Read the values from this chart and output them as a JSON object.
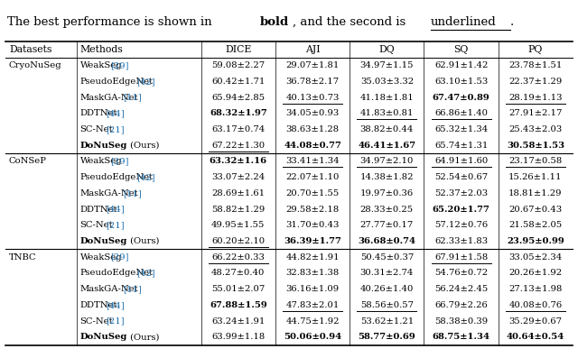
{
  "headers": [
    "Datasets",
    "Methods",
    "DICE",
    "AJI",
    "DQ",
    "SQ",
    "PQ"
  ],
  "rows": [
    {
      "dataset": "CryoNuSeg",
      "method": "WeakSeg",
      "ref": "29",
      "dice": "59.08±2.27",
      "aji": "29.07±1.81",
      "dq": "34.97±1.15",
      "sq": "62.91±1.42",
      "pq": "23.78±1.51",
      "bold": [],
      "underline": [],
      "dataset_start": true
    },
    {
      "dataset": "",
      "method": "PseudoEdgeNet",
      "ref": "42",
      "dice": "60.42±1.71",
      "aji": "36.78±2.17",
      "dq": "35.03±3.32",
      "sq": "63.10±1.53",
      "pq": "22.37±1.29",
      "bold": [],
      "underline": [],
      "dataset_start": false
    },
    {
      "dataset": "",
      "method": "MaskGA-Net",
      "ref": "11",
      "dice": "65.94±2.85",
      "aji": "40.13±0.73",
      "dq": "41.18±1.81",
      "sq": "67.47±0.89",
      "pq": "28.19±1.13",
      "bold": [
        "sq"
      ],
      "underline": [
        "aji",
        "pq"
      ],
      "dataset_start": false
    },
    {
      "dataset": "",
      "method": "DDTNet",
      "ref": "44",
      "dice": "68.32±1.97",
      "aji": "34.05±0.93",
      "dq": "41.83±0.81",
      "sq": "66.86±1.40",
      "pq": "27.91±2.17",
      "bold": [
        "dice"
      ],
      "underline": [
        "dq",
        "sq"
      ],
      "dataset_start": false
    },
    {
      "dataset": "",
      "method": "SC-Net",
      "ref": "21",
      "dice": "63.17±0.74",
      "aji": "38.63±1.28",
      "dq": "38.82±0.44",
      "sq": "65.32±1.34",
      "pq": "25.43±2.03",
      "bold": [],
      "underline": [],
      "dataset_start": false
    },
    {
      "dataset": "",
      "method": "DoNuSeg (Ours)",
      "ref": "",
      "dice": "67.22±1.30",
      "aji": "44.08±0.77",
      "dq": "46.41±1.67",
      "sq": "65.74±1.31",
      "pq": "30.58±1.53",
      "bold": [
        "aji",
        "dq",
        "pq"
      ],
      "underline": [
        "dice"
      ],
      "dataset_start": false
    },
    {
      "dataset": "CoNSeP",
      "method": "WeakSeg",
      "ref": "29",
      "dice": "63.32±1.16",
      "aji": "33.41±1.34",
      "dq": "34.97±2.10",
      "sq": "64.91±1.60",
      "pq": "23.17±0.58",
      "bold": [
        "dice"
      ],
      "underline": [
        "aji",
        "dq",
        "sq",
        "pq"
      ],
      "dataset_start": true
    },
    {
      "dataset": "",
      "method": "PseudoEdgeNet",
      "ref": "42",
      "dice": "33.07±2.24",
      "aji": "22.07±1.10",
      "dq": "14.38±1.82",
      "sq": "52.54±0.67",
      "pq": "15.26±1.11",
      "bold": [],
      "underline": [],
      "dataset_start": false
    },
    {
      "dataset": "",
      "method": "MaskGA-Net",
      "ref": "11",
      "dice": "28.69±1.61",
      "aji": "20.70±1.55",
      "dq": "19.97±0.36",
      "sq": "52.37±2.03",
      "pq": "18.81±1.29",
      "bold": [],
      "underline": [],
      "dataset_start": false
    },
    {
      "dataset": "",
      "method": "DDTNet",
      "ref": "44",
      "dice": "58.82±1.29",
      "aji": "29.58±2.18",
      "dq": "28.33±0.25",
      "sq": "65.20±1.77",
      "pq": "20.67±0.43",
      "bold": [
        "sq"
      ],
      "underline": [],
      "dataset_start": false
    },
    {
      "dataset": "",
      "method": "SC-Net",
      "ref": "21",
      "dice": "49.95±1.55",
      "aji": "31.70±0.43",
      "dq": "27.77±0.17",
      "sq": "57.12±0.76",
      "pq": "21.58±2.05",
      "bold": [],
      "underline": [],
      "dataset_start": false
    },
    {
      "dataset": "",
      "method": "DoNuSeg (Ours)",
      "ref": "",
      "dice": "60.20±2.10",
      "aji": "36.39±1.77",
      "dq": "36.68±0.74",
      "sq": "62.33±1.83",
      "pq": "23.95±0.99",
      "bold": [
        "aji",
        "dq",
        "pq"
      ],
      "underline": [
        "dice"
      ],
      "dataset_start": false
    },
    {
      "dataset": "TNBC",
      "method": "WeakSeg",
      "ref": "29",
      "dice": "66.22±0.33",
      "aji": "44.82±1.91",
      "dq": "50.45±0.37",
      "sq": "67.91±1.58",
      "pq": "33.05±2.34",
      "bold": [],
      "underline": [
        "dice",
        "sq"
      ],
      "dataset_start": true
    },
    {
      "dataset": "",
      "method": "PseudoEdgeNet",
      "ref": "42",
      "dice": "48.27±0.40",
      "aji": "32.83±1.38",
      "dq": "30.31±2.74",
      "sq": "54.76±0.72",
      "pq": "20.26±1.92",
      "bold": [],
      "underline": [],
      "dataset_start": false
    },
    {
      "dataset": "",
      "method": "MaskGA-Net",
      "ref": "11",
      "dice": "55.01±2.07",
      "aji": "36.16±1.09",
      "dq": "40.26±1.40",
      "sq": "56.24±2.45",
      "pq": "27.13±1.98",
      "bold": [],
      "underline": [],
      "dataset_start": false
    },
    {
      "dataset": "",
      "method": "DDTNet",
      "ref": "44",
      "dice": "67.88±1.59",
      "aji": "47.83±2.01",
      "dq": "58.56±0.57",
      "sq": "66.79±2.26",
      "pq": "40.08±0.76",
      "bold": [
        "dice"
      ],
      "underline": [
        "aji",
        "dq",
        "pq"
      ],
      "dataset_start": false
    },
    {
      "dataset": "",
      "method": "SC-Net",
      "ref": "21",
      "dice": "63.24±1.91",
      "aji": "44.75±1.92",
      "dq": "53.62±1.21",
      "sq": "58.38±0.39",
      "pq": "35.29±0.67",
      "bold": [],
      "underline": [],
      "dataset_start": false
    },
    {
      "dataset": "",
      "method": "DoNuSeg (Ours)",
      "ref": "",
      "dice": "63.99±1.18",
      "aji": "50.06±0.94",
      "dq": "58.77±0.69",
      "sq": "68.75±1.34",
      "pq": "40.64±0.54",
      "bold": [
        "aji",
        "dq",
        "sq",
        "pq"
      ],
      "underline": [],
      "dataset_start": false
    }
  ],
  "ref_color": "#1a6faf",
  "font_size": 7.2,
  "header_font_size": 7.8,
  "title_font_size": 9.5
}
